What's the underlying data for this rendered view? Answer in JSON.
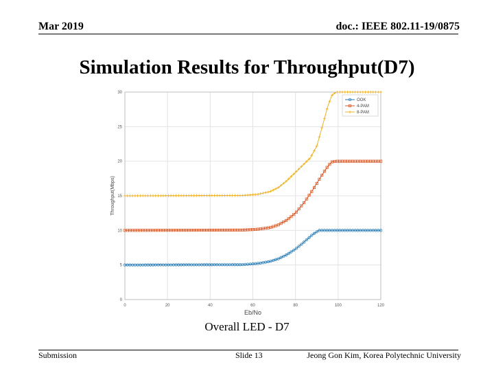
{
  "header": {
    "date": "Mar 2019",
    "doc_id": "doc.: IEEE 802.11-19/0875"
  },
  "slide_title": "Simulation Results for Throughput(D7)",
  "caption": "Overall LED - D7",
  "footer": {
    "left": "Submission",
    "center": "Slide 13",
    "right": "Jeong Gon Kim, Korea Polytechnic University"
  },
  "chart_data": {
    "type": "line",
    "title": "",
    "xlabel": "Eb/No",
    "ylabel": "Throughput(Mbps)",
    "xlim": [
      0,
      120
    ],
    "ylim": [
      0,
      30
    ],
    "xticks": [
      0,
      20,
      40,
      60,
      80,
      100,
      120
    ],
    "yticks": [
      0,
      5,
      10,
      15,
      20,
      25,
      30
    ],
    "grid": true,
    "legend_position": "top-right",
    "series": [
      {
        "name": "OOK",
        "color": "#1f77b4",
        "marker": "circle",
        "x": [
          0,
          55,
          62,
          68,
          72,
          76,
          80,
          84,
          88,
          91,
          95,
          100,
          110,
          120
        ],
        "y": [
          5,
          5.05,
          5.2,
          5.5,
          5.9,
          6.5,
          7.3,
          8.3,
          9.4,
          10,
          10,
          10,
          10,
          10
        ]
      },
      {
        "name": "4-PAM",
        "color": "#d9541e",
        "marker": "square",
        "x": [
          0,
          55,
          62,
          68,
          72,
          76,
          80,
          84,
          88,
          92,
          95,
          97,
          99,
          110,
          120
        ],
        "y": [
          10,
          10.05,
          10.15,
          10.4,
          10.8,
          11.5,
          12.5,
          14,
          15.8,
          17.8,
          19.2,
          19.9,
          20,
          20,
          20
        ]
      },
      {
        "name": "8-PAM",
        "color": "#edb120",
        "marker": "plus",
        "x": [
          0,
          55,
          62,
          68,
          72,
          76,
          80,
          84,
          87,
          90,
          93,
          95,
          97,
          99,
          101,
          110,
          120
        ],
        "y": [
          15,
          15.05,
          15.2,
          15.6,
          16.2,
          17.2,
          18.4,
          19.6,
          20.5,
          22.2,
          25.5,
          27.8,
          29.5,
          30,
          30,
          30,
          30
        ]
      }
    ]
  }
}
